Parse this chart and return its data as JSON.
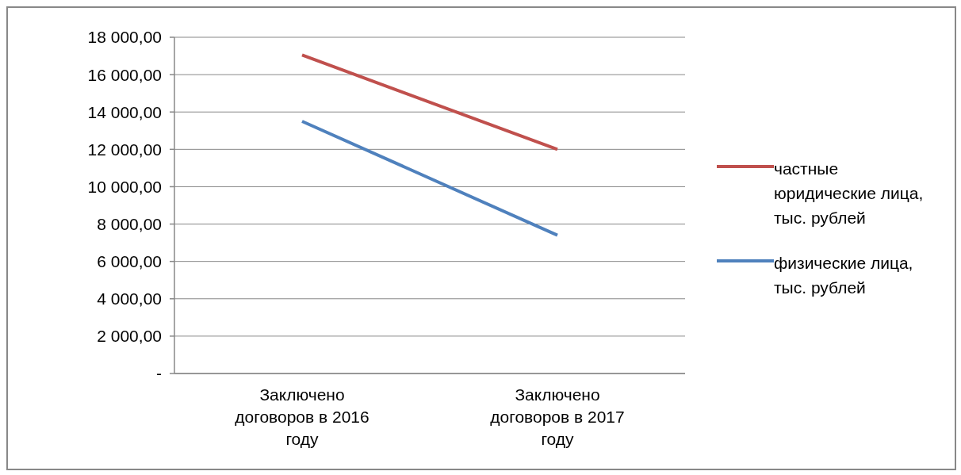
{
  "chart_data": {
    "type": "line",
    "categories": [
      "Заключено договоров в 2016 году",
      "Заключено договоров в 2017 году"
    ],
    "series": [
      {
        "name": "частные юридические лица, тыс. рублей",
        "color": "#c0504d",
        "values": [
          17050,
          12000
        ]
      },
      {
        "name": "физические лица, тыс. рублей",
        "color": "#4f81bd",
        "values": [
          13500,
          7400
        ]
      }
    ],
    "ylim": [
      0,
      18000
    ],
    "yticks": [
      {
        "value": 0,
        "label": "-"
      },
      {
        "value": 2000,
        "label": "2 000,00"
      },
      {
        "value": 4000,
        "label": "4 000,00"
      },
      {
        "value": 6000,
        "label": "6 000,00"
      },
      {
        "value": 8000,
        "label": "8 000,00"
      },
      {
        "value": 10000,
        "label": "10 000,00"
      },
      {
        "value": 12000,
        "label": "12 000,00"
      },
      {
        "value": 14000,
        "label": "14 000,00"
      },
      {
        "value": 16000,
        "label": "16 000,00"
      },
      {
        "value": 18000,
        "label": "18 000,00"
      }
    ],
    "grid": "y",
    "legend": "right",
    "marker": "none",
    "line_style": "solid"
  }
}
